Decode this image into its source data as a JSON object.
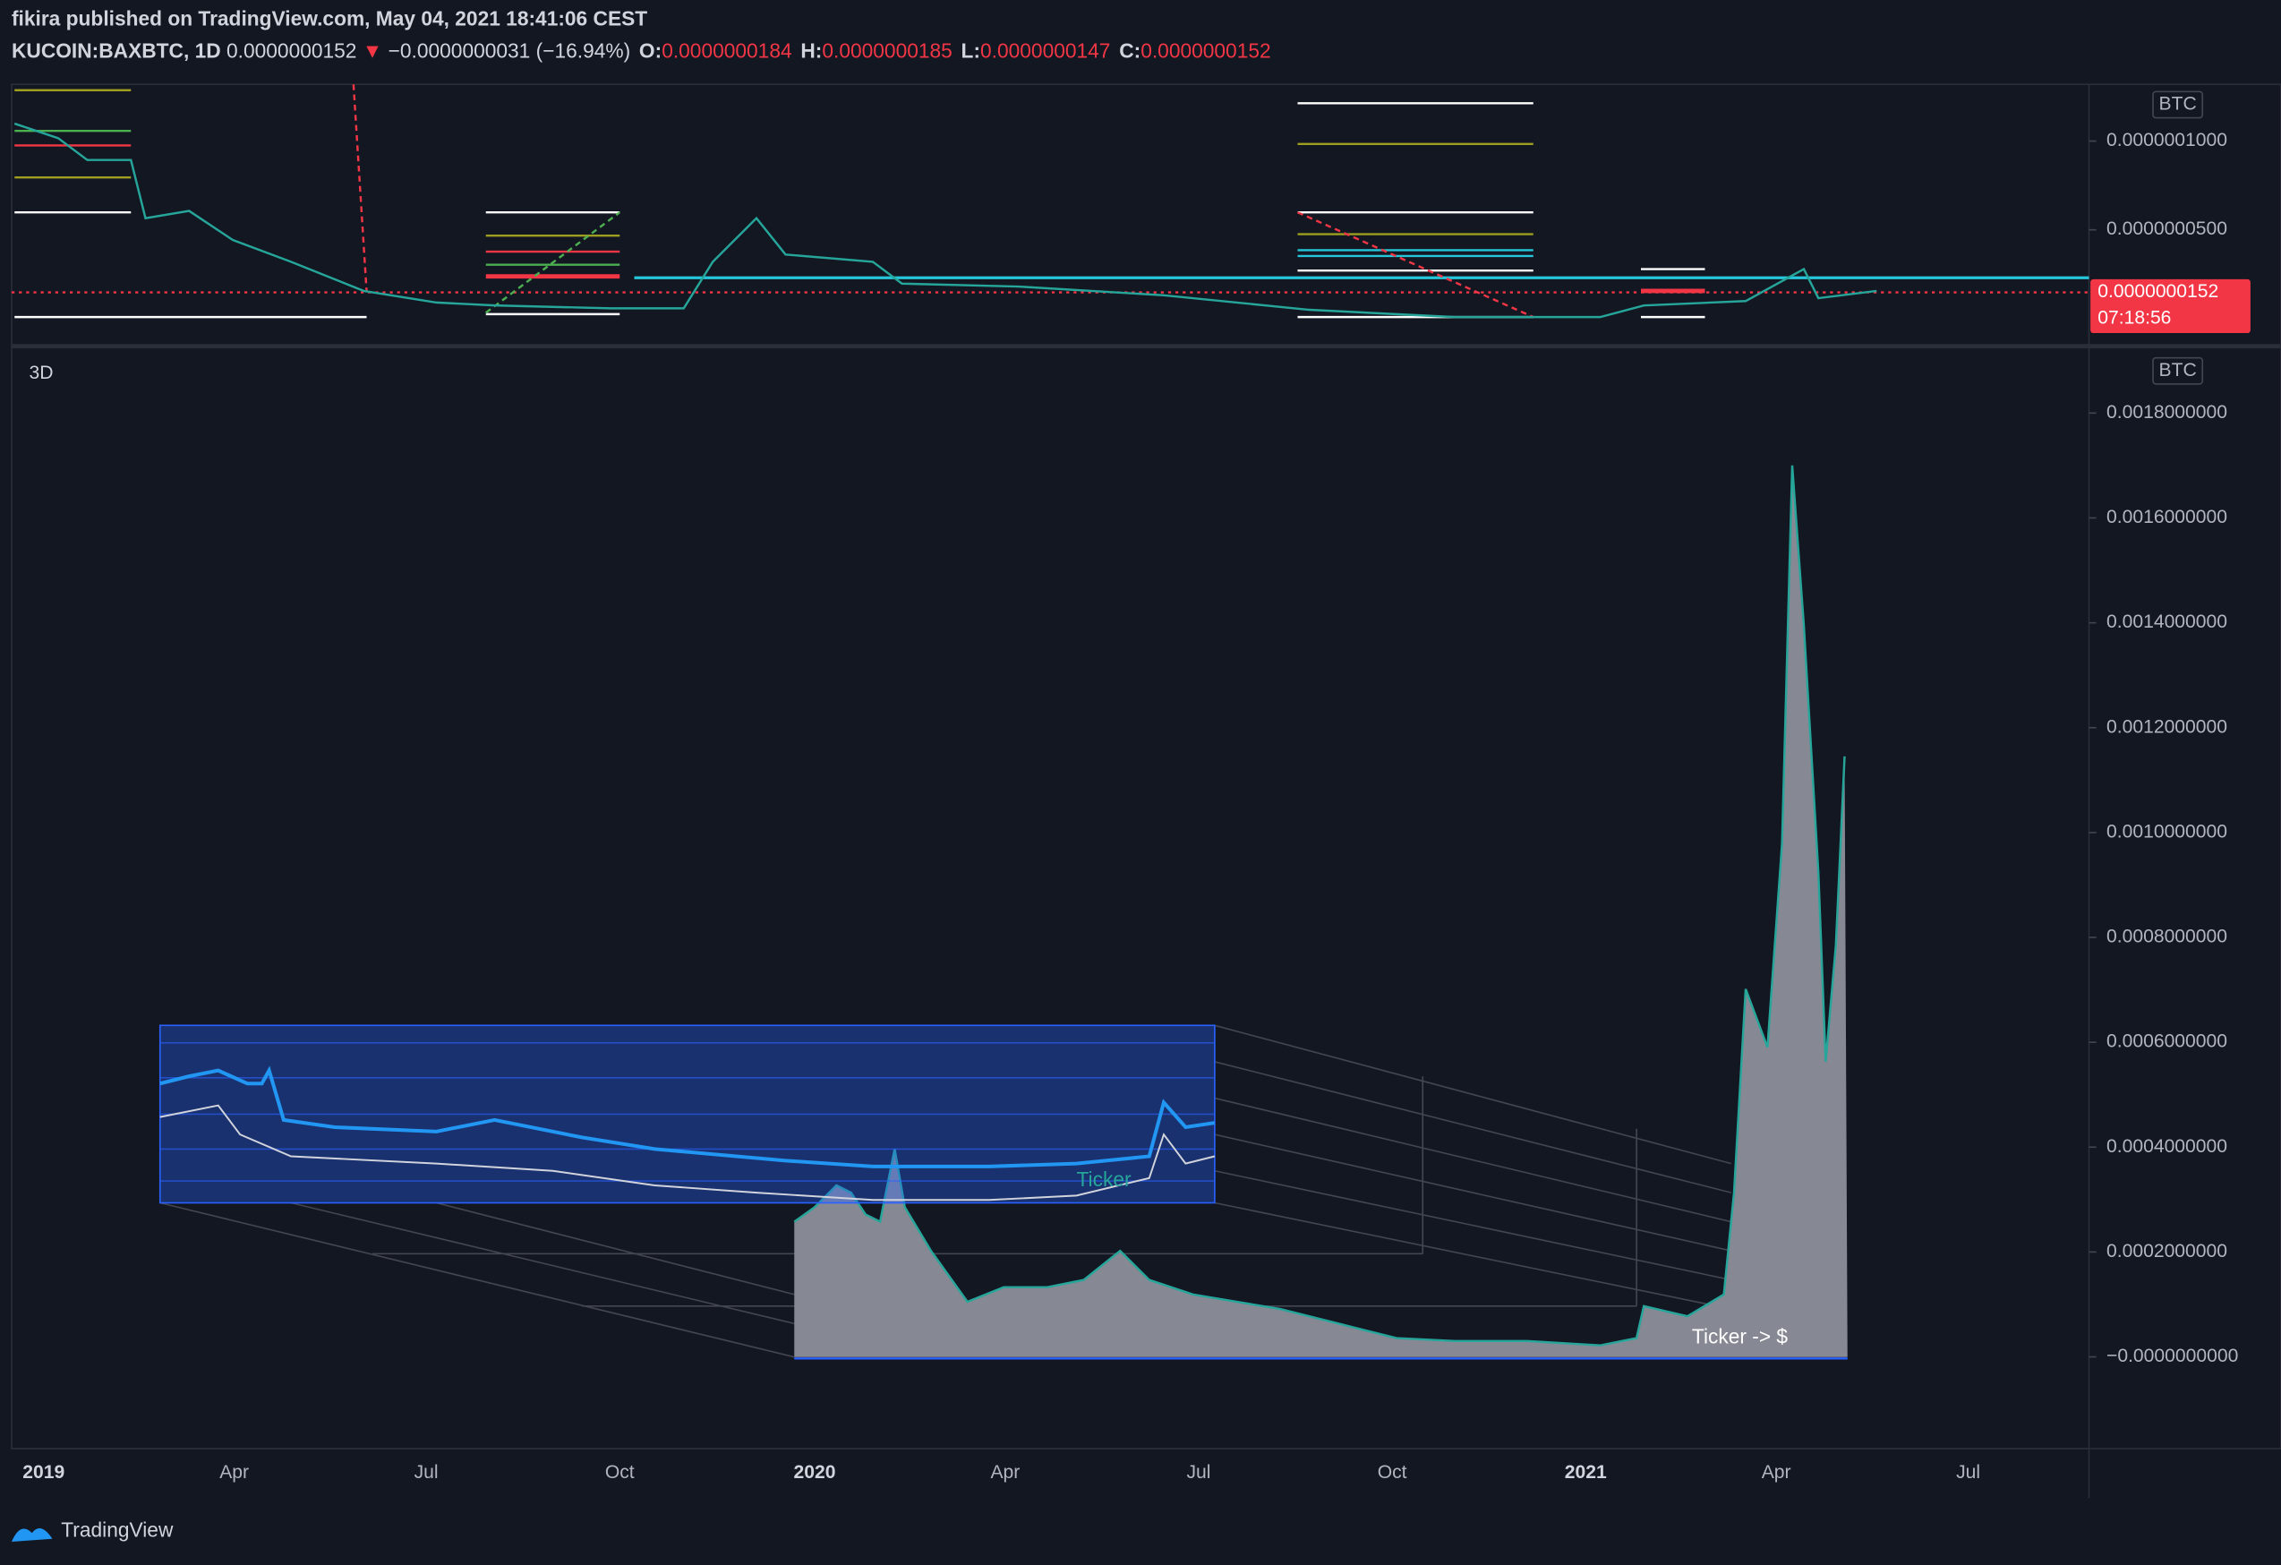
{
  "header": {
    "byline": "fikira published on TradingView.com, May 04, 2021 18:41:06 CEST",
    "symbol": "KUCOIN:BAXBTC, 1D",
    "last": "0.0000000152",
    "arrow": "▼",
    "change": "−0.0000000031 (−16.94%)",
    "ohlc": [
      {
        "label": "O:",
        "value": "0.0000000184"
      },
      {
        "label": "H:",
        "value": "0.0000000185"
      },
      {
        "label": "L:",
        "value": "0.0000000147"
      },
      {
        "label": "C:",
        "value": "0.0000000152"
      }
    ]
  },
  "top_pane": {
    "currency": "BTC",
    "yticks": [
      "0.0000001000",
      "0.0000000500"
    ],
    "price_label": "0.0000000152",
    "countdown": "07:18:56"
  },
  "main_pane": {
    "interval": "3D",
    "currency": "BTC",
    "yticks": [
      "0.0018000000",
      "0.0016000000",
      "0.0014000000",
      "0.0012000000",
      "0.0010000000",
      "0.0008000000",
      "0.0006000000",
      "0.0004000000",
      "0.0002000000",
      "−0.0000000000"
    ],
    "annotations": [
      "Ticker",
      "Ticker -> $"
    ]
  },
  "xaxis": {
    "labels": [
      "2019",
      "Apr",
      "Jul",
      "Oct",
      "2020",
      "Apr",
      "Jul",
      "Oct",
      "2021",
      "Apr",
      "Jul"
    ]
  },
  "footer": {
    "brand": "TradingView"
  }
}
